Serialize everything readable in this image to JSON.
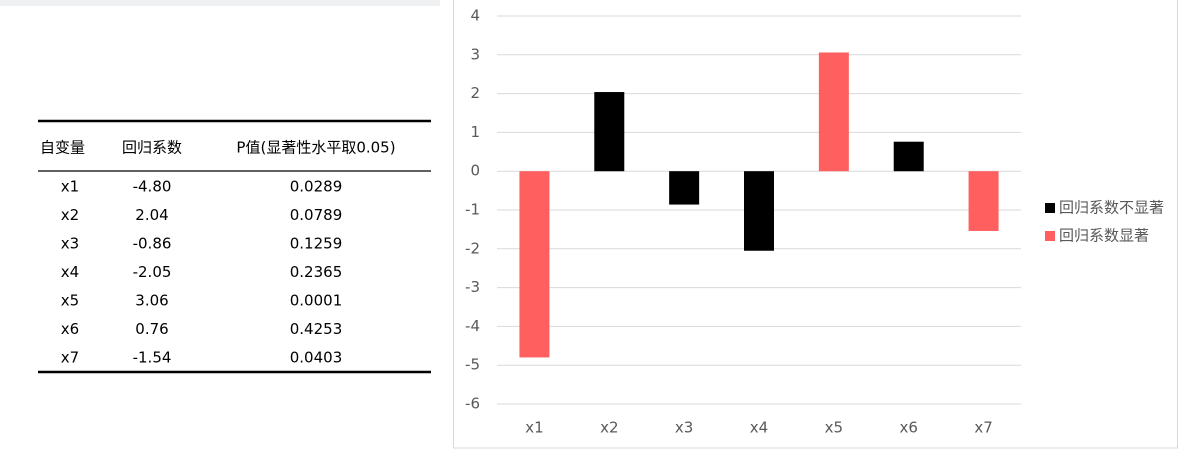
{
  "table": {
    "header": [
      "自变量",
      "回归系数",
      "P值(显著性水平取0.05)"
    ],
    "rows": [
      [
        "x1",
        "-4.80",
        "0.0289"
      ],
      [
        "x2",
        "2.04",
        "0.0789"
      ],
      [
        "x3",
        "-0.86",
        "0.1259"
      ],
      [
        "x4",
        "-2.05",
        "0.2365"
      ],
      [
        "x5",
        "3.06",
        "0.0001"
      ],
      [
        "x6",
        "0.76",
        "0.4253"
      ],
      [
        "x7",
        "-1.54",
        "0.0403"
      ]
    ]
  },
  "chart_data": {
    "type": "bar",
    "categories": [
      "x1",
      "x2",
      "x3",
      "x4",
      "x5",
      "x6",
      "x7"
    ],
    "series": [
      {
        "name": "回归系数不显著",
        "color": "#000000",
        "values": [
          null,
          2.04,
          -0.86,
          -2.05,
          null,
          0.76,
          null
        ]
      },
      {
        "name": "回归系数显著",
        "color": "#ff5f5f",
        "values": [
          -4.8,
          null,
          null,
          null,
          3.06,
          null,
          -1.54
        ]
      }
    ],
    "ylim": [
      -6,
      4
    ],
    "yticks": [
      -6,
      -5,
      -4,
      -3,
      -2,
      -1,
      0,
      1,
      2,
      3,
      4
    ],
    "grid": true,
    "legend": "right"
  }
}
